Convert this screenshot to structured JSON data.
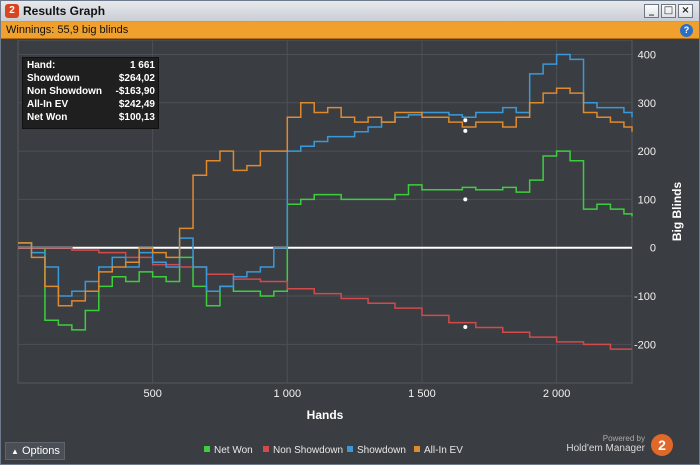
{
  "window": {
    "title": "Results Graph",
    "icon_text": "2",
    "controls": [
      "_",
      "□",
      "×"
    ]
  },
  "info": {
    "winnings_label": "Winnings:",
    "winnings_value": "55,9 big blinds",
    "help_icon": "?"
  },
  "stats": [
    {
      "label": "Hand:",
      "value": "1 661"
    },
    {
      "label": "Showdown",
      "value": "$264,02"
    },
    {
      "label": "Non Showdown",
      "value": "-$163,90"
    },
    {
      "label": "All-In EV",
      "value": "$242,49"
    },
    {
      "label": "Net Won",
      "value": "$100,13"
    }
  ],
  "options_label": "Options",
  "brand": {
    "powered": "Powered by",
    "name": "Hold'em Manager",
    "logo": "2"
  },
  "colors": {
    "net_won": "#3ccf3c",
    "non_showdown": "#d24a4a",
    "showdown": "#3a9ad9",
    "all_in_ev": "#e08a2e"
  },
  "chart_data": {
    "type": "line",
    "xlabel": "Hands",
    "ylabel": "Big Blinds",
    "xlim": [
      0,
      2280
    ],
    "ylim": [
      -280,
      430
    ],
    "x_ticks": [
      500,
      1000,
      1500,
      2000
    ],
    "x_tick_labels": [
      "500",
      "1 000",
      "1 500",
      "2 000"
    ],
    "y_ticks": [
      -200,
      -100,
      0,
      100,
      200,
      300,
      400
    ],
    "y_tick_labels": [
      "-200",
      "-100",
      "0",
      "100",
      "200",
      "300",
      "400"
    ],
    "grid": true,
    "legend_position": "bottom",
    "series": [
      {
        "name": "Net Won",
        "color": "#3ccf3c",
        "x": [
          0,
          50,
          100,
          150,
          200,
          250,
          300,
          350,
          400,
          450,
          500,
          550,
          600,
          650,
          700,
          750,
          800,
          850,
          900,
          950,
          1000,
          1050,
          1100,
          1150,
          1200,
          1250,
          1300,
          1350,
          1400,
          1450,
          1500,
          1550,
          1600,
          1650,
          1700,
          1750,
          1800,
          1850,
          1900,
          1950,
          2000,
          2050,
          2100,
          2150,
          2200,
          2250,
          2280
        ],
        "values": [
          10,
          0,
          -150,
          -160,
          -170,
          -130,
          -80,
          -60,
          -70,
          -50,
          -60,
          -70,
          -20,
          -80,
          -120,
          -80,
          -90,
          -90,
          -100,
          -90,
          90,
          100,
          110,
          110,
          100,
          100,
          100,
          100,
          110,
          130,
          120,
          120,
          120,
          125,
          120,
          120,
          125,
          115,
          140,
          190,
          200,
          180,
          80,
          90,
          80,
          70,
          65
        ]
      },
      {
        "name": "Non Showdown",
        "color": "#d24a4a",
        "x": [
          0,
          100,
          200,
          300,
          400,
          500,
          600,
          700,
          800,
          900,
          1000,
          1100,
          1200,
          1300,
          1400,
          1500,
          1600,
          1700,
          1800,
          1900,
          2000,
          2100,
          2200,
          2280
        ],
        "values": [
          0,
          0,
          -5,
          -10,
          -20,
          -35,
          -40,
          -55,
          -65,
          -70,
          -85,
          -95,
          -105,
          -115,
          -125,
          -140,
          -155,
          -165,
          -175,
          -185,
          -195,
          -200,
          -210,
          -210
        ]
      },
      {
        "name": "Showdown",
        "color": "#3a9ad9",
        "x": [
          0,
          50,
          100,
          150,
          200,
          250,
          300,
          350,
          400,
          450,
          500,
          550,
          600,
          650,
          700,
          750,
          800,
          850,
          900,
          950,
          1000,
          1050,
          1100,
          1150,
          1200,
          1250,
          1300,
          1350,
          1400,
          1450,
          1500,
          1550,
          1600,
          1650,
          1700,
          1750,
          1800,
          1850,
          1900,
          1950,
          2000,
          2050,
          2100,
          2150,
          2200,
          2250,
          2280
        ],
        "values": [
          10,
          -10,
          -40,
          -100,
          -90,
          -70,
          -40,
          -20,
          -40,
          -10,
          -30,
          -40,
          20,
          -40,
          -90,
          -80,
          -60,
          -50,
          -40,
          0,
          200,
          210,
          220,
          230,
          230,
          240,
          250,
          260,
          270,
          275,
          280,
          280,
          275,
          270,
          280,
          280,
          290,
          280,
          360,
          380,
          400,
          390,
          300,
          290,
          290,
          280,
          270
        ]
      },
      {
        "name": "All-In EV",
        "color": "#e08a2e",
        "x": [
          0,
          50,
          100,
          150,
          200,
          250,
          300,
          350,
          400,
          450,
          500,
          550,
          600,
          650,
          700,
          750,
          800,
          850,
          900,
          950,
          1000,
          1050,
          1100,
          1150,
          1200,
          1250,
          1300,
          1350,
          1400,
          1450,
          1500,
          1550,
          1600,
          1650,
          1700,
          1750,
          1800,
          1850,
          1900,
          1950,
          2000,
          2050,
          2100,
          2150,
          2200,
          2250,
          2280
        ],
        "values": [
          10,
          -20,
          -80,
          -120,
          -110,
          -90,
          -50,
          -40,
          -30,
          0,
          -10,
          -20,
          40,
          150,
          180,
          200,
          160,
          170,
          200,
          200,
          270,
          300,
          280,
          290,
          270,
          260,
          270,
          260,
          280,
          280,
          270,
          270,
          260,
          250,
          260,
          260,
          250,
          270,
          300,
          320,
          330,
          320,
          280,
          270,
          260,
          250,
          240
        ]
      }
    ],
    "markers": [
      {
        "series": "Net Won",
        "x": 1661,
        "y": 100
      },
      {
        "series": "Non Showdown",
        "x": 1661,
        "y": -164
      },
      {
        "series": "Showdown",
        "x": 1661,
        "y": 264
      },
      {
        "series": "All-In EV",
        "x": 1661,
        "y": 242
      }
    ]
  }
}
